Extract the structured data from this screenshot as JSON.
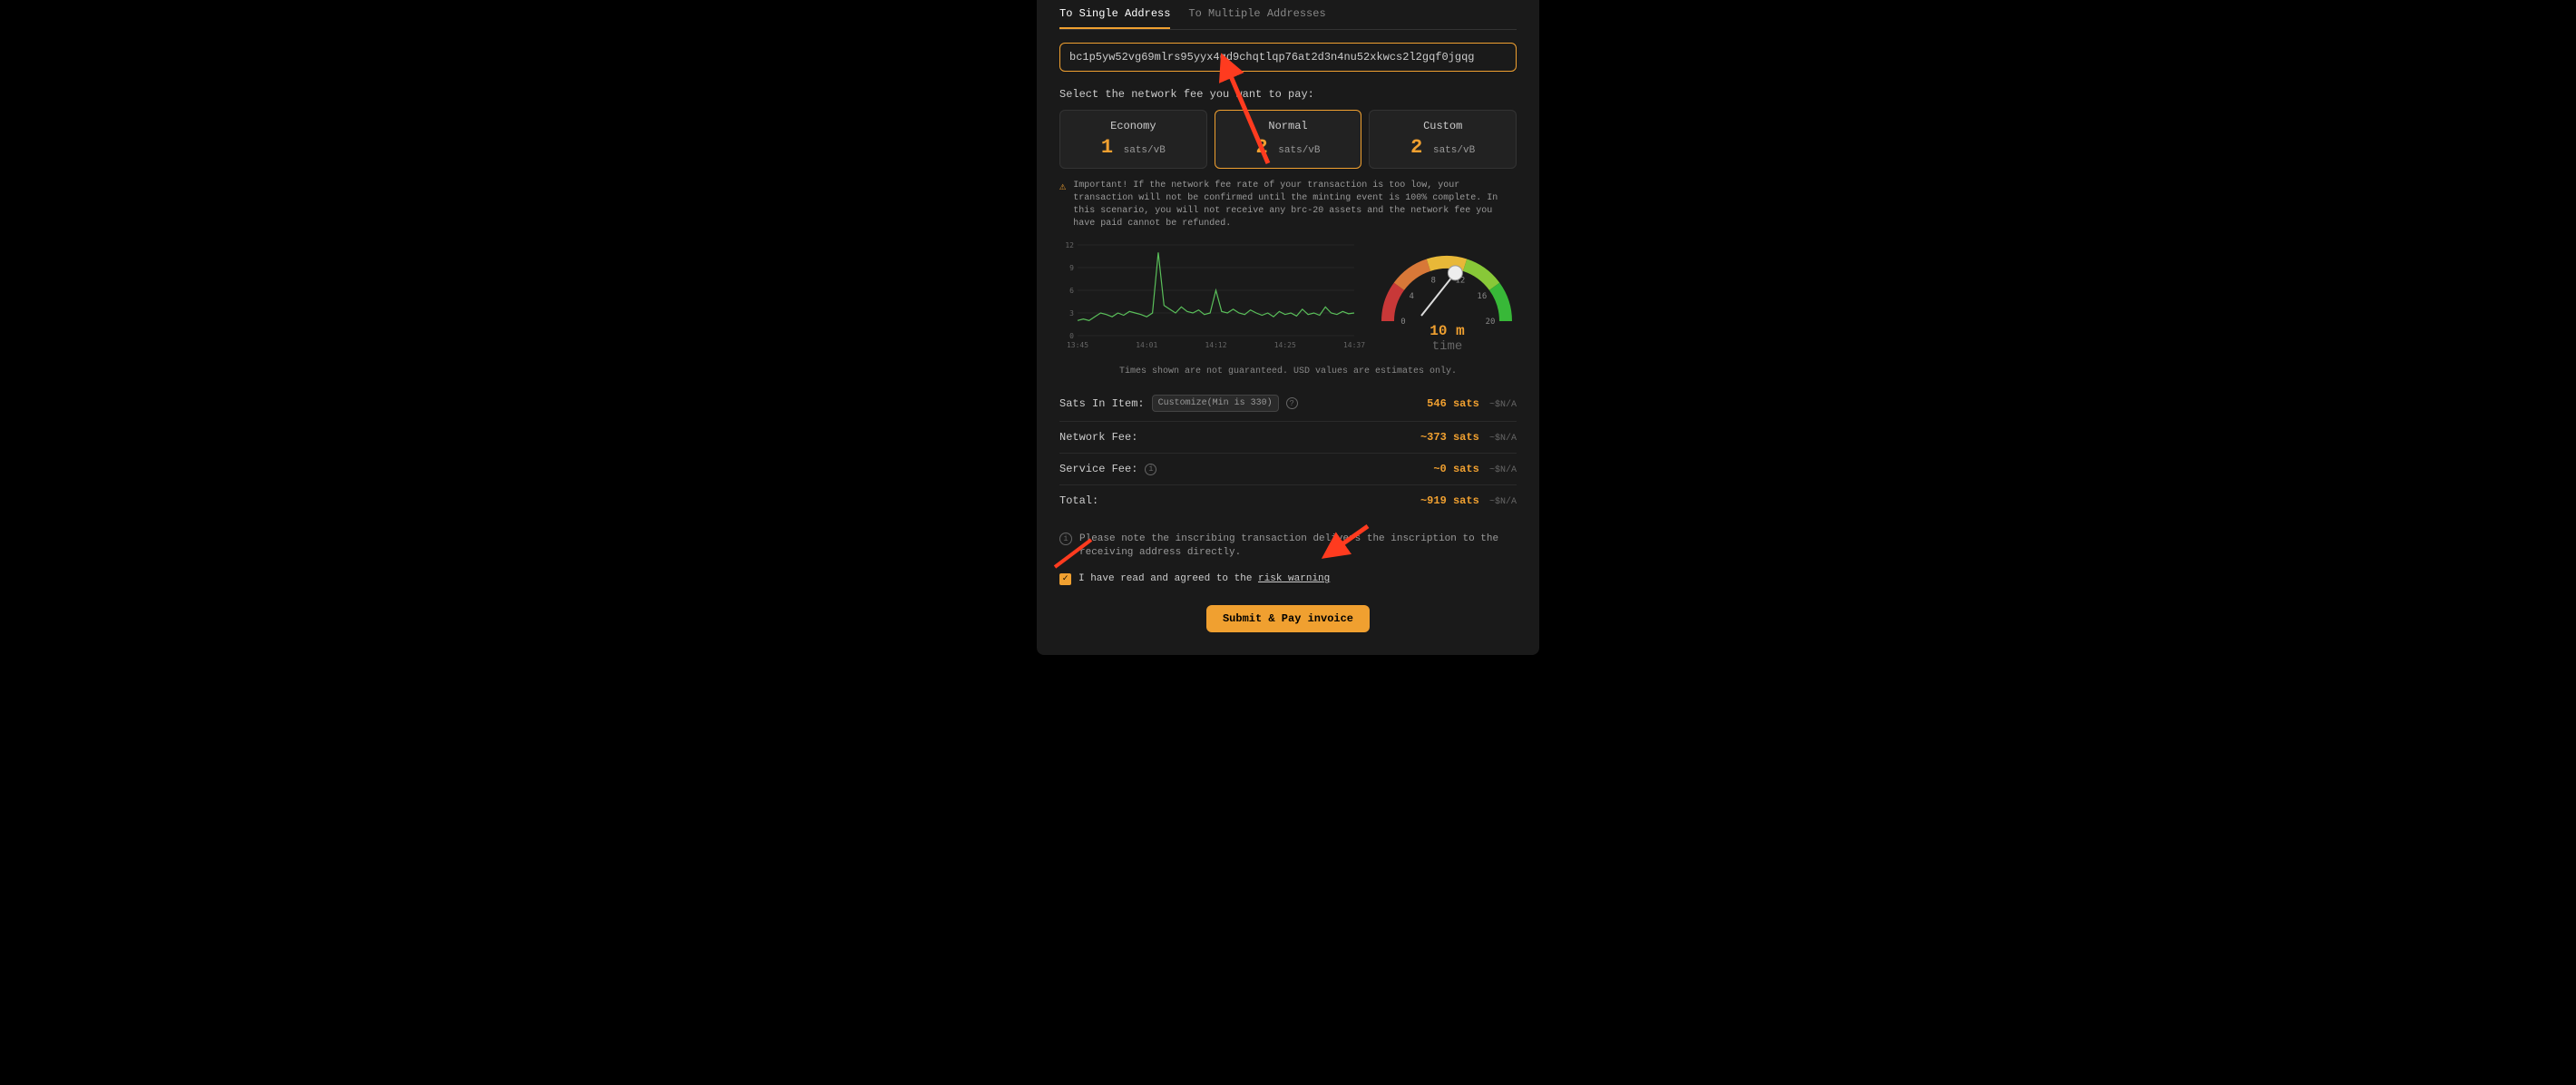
{
  "tabs": {
    "single": "To Single Address",
    "multiple": "To Multiple Addresses"
  },
  "address": "bc1p5yw52vg69mlrs95yyx4gd9chqtlqp76at2d3n4nu52xkwcs2l2gqf0jgqg",
  "fee_label": "Select the network fee you want to pay:",
  "fee_options": [
    {
      "name": "Economy",
      "value": "1",
      "unit": "sats/vB",
      "selected": false
    },
    {
      "name": "Normal",
      "value": "2",
      "unit": "sats/vB",
      "selected": true
    },
    {
      "name": "Custom",
      "value": "2",
      "unit": "sats/vB",
      "selected": false
    }
  ],
  "warning": "Important! If the network fee rate of your transaction is too low, your transaction will not be confirmed until the minting event is 100% complete. In this scenario, you will not receive any brc-20 assets and the network fee you have paid cannot be refunded.",
  "line_chart": {
    "ylabels": [
      "12",
      "9",
      "6",
      "3",
      "0"
    ],
    "xlabels": [
      "13:45",
      "14:01",
      "14:12",
      "14:25",
      "14:37"
    ],
    "ylim": [
      0,
      12
    ],
    "points": [
      2,
      2.2,
      2,
      2.5,
      3,
      2.8,
      2.5,
      3,
      2.7,
      3.2,
      3,
      2.8,
      2.5,
      3,
      11,
      4,
      3.5,
      3,
      3.8,
      3.2,
      3,
      3.4,
      2.8,
      3,
      6,
      3.2,
      3,
      3.5,
      3,
      2.8,
      3.4,
      3,
      2.7,
      3,
      2.5,
      3.2,
      2.8,
      3,
      2.6,
      3.5,
      2.8,
      3,
      2.7,
      3.8,
      3,
      2.8,
      3.2,
      2.9,
      3
    ],
    "line_color": "#5abf5a",
    "grid_color": "#333333"
  },
  "gauge": {
    "ticks": [
      "0",
      "4",
      "8",
      "12",
      "16",
      "20"
    ],
    "value_label": "10 m",
    "sub_label": "time",
    "needle_angle": -10
  },
  "disclaimer": "Times shown are not guaranteed. USD values are estimates only.",
  "rows": {
    "sats_item": {
      "label": "Sats In Item:",
      "customize": "Customize",
      "min": "(Min is 330)",
      "value": "546 sats",
      "usd": "~$N/A"
    },
    "network": {
      "label": "Network Fee:",
      "value": "~373 sats",
      "usd": "~$N/A"
    },
    "service": {
      "label": "Service Fee:",
      "value": "~0 sats",
      "usd": "~$N/A"
    },
    "total": {
      "label": "Total:",
      "value": "~919 sats",
      "usd": "~$N/A"
    }
  },
  "note": "Please note the inscribing transaction delivers the inscription to the receiving address directly.",
  "agree": {
    "text": "I have read and agreed to the ",
    "link": "risk warning"
  },
  "submit": "Submit & Pay invoice",
  "colors": {
    "accent": "#f0a030",
    "bg": "#1a1a1a",
    "text": "#cccccc"
  }
}
